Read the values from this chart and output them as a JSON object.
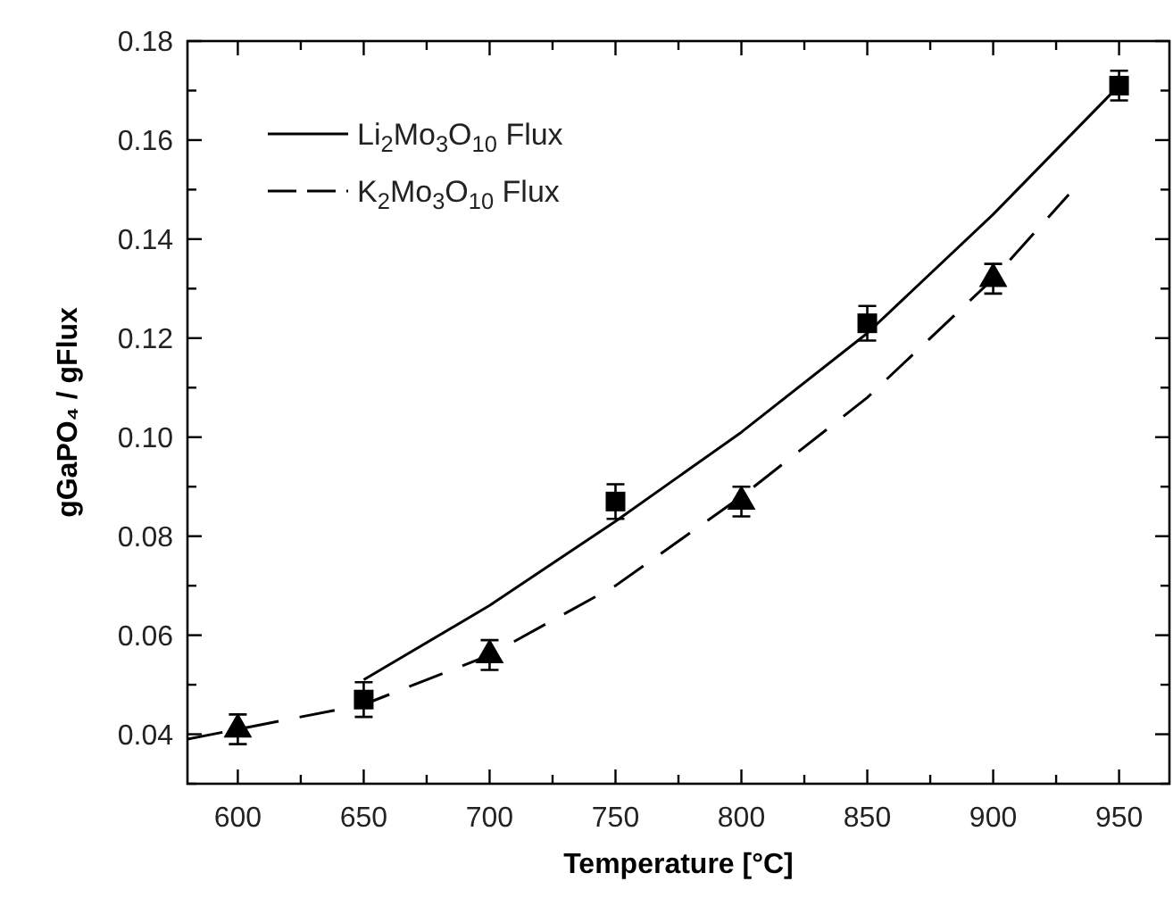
{
  "chart_data": {
    "type": "scatter",
    "xlabel": "Temperature [°C]",
    "ylabel": "gGaPO₄ / gFlux",
    "xlim": [
      580,
      970
    ],
    "ylim": [
      0.03,
      0.18
    ],
    "xticks": [
      600,
      {
        "value": 625,
        "label": null
      },
      650,
      {
        "value": 675,
        "label": null
      },
      700,
      {
        "value": 725,
        "label": null
      },
      750,
      {
        "value": 775,
        "label": null
      },
      800,
      {
        "value": 825,
        "label": null
      },
      850,
      {
        "value": 875,
        "label": null
      },
      900,
      {
        "value": 925,
        "label": null
      },
      950
    ],
    "yticks": [
      {
        "value": 0.03,
        "label": null
      },
      {
        "value": 0.04,
        "label": "0.04"
      },
      {
        "value": 0.05,
        "label": null
      },
      {
        "value": 0.06,
        "label": "0.06"
      },
      {
        "value": 0.07,
        "label": null
      },
      {
        "value": 0.08,
        "label": "0.08"
      },
      {
        "value": 0.09,
        "label": null
      },
      {
        "value": 0.1,
        "label": "0.10"
      },
      {
        "value": 0.11,
        "label": null
      },
      {
        "value": 0.12,
        "label": "0.12"
      },
      {
        "value": 0.13,
        "label": null
      },
      {
        "value": 0.14,
        "label": "0.14"
      },
      {
        "value": 0.15,
        "label": null
      },
      {
        "value": 0.16,
        "label": "0.16"
      },
      {
        "value": 0.17,
        "label": null
      },
      {
        "value": 0.18,
        "label": "0.18"
      }
    ],
    "grid": false,
    "legend": "top left",
    "series": [
      {
        "type": "line",
        "name": "Li$_{2}$Mo$_{3}$O$_{10}$ Flux",
        "color": "#000000",
        "line_style": "solid",
        "marker": "none",
        "x": [
          650,
          700,
          750,
          800,
          850,
          900,
          950
        ],
        "values": [
          0.051,
          0.066,
          0.083,
          0.101,
          0.121,
          0.145,
          0.171
        ]
      },
      {
        "type": "line",
        "name": "K$_{2}$Mo$_{3}$O$_{10}$ Flux",
        "color": "#000000",
        "line_style": "dashed",
        "marker": "none",
        "x": [
          580,
          600,
          650,
          700,
          750,
          800,
          850,
          900,
          930
        ],
        "values": [
          0.039,
          0.041,
          0.046,
          0.056,
          0.07,
          0.088,
          0.108,
          0.132,
          0.149
        ]
      },
      {
        "color": "#000000",
        "marker": "square",
        "x": [
          650,
          750,
          850,
          950
        ],
        "values": [
          0.047,
          0.087,
          0.123,
          0.171
        ],
        "errors": [
          0.0035,
          0.0035,
          0.0035,
          0.003
        ]
      },
      {
        "color": "#000000",
        "marker": "triangle",
        "x": [
          600,
          700,
          800,
          900
        ],
        "values": [
          0.041,
          0.056,
          0.087,
          0.132
        ],
        "errors": [
          0.003,
          0.003,
          0.003,
          0.003
        ]
      }
    ]
  }
}
